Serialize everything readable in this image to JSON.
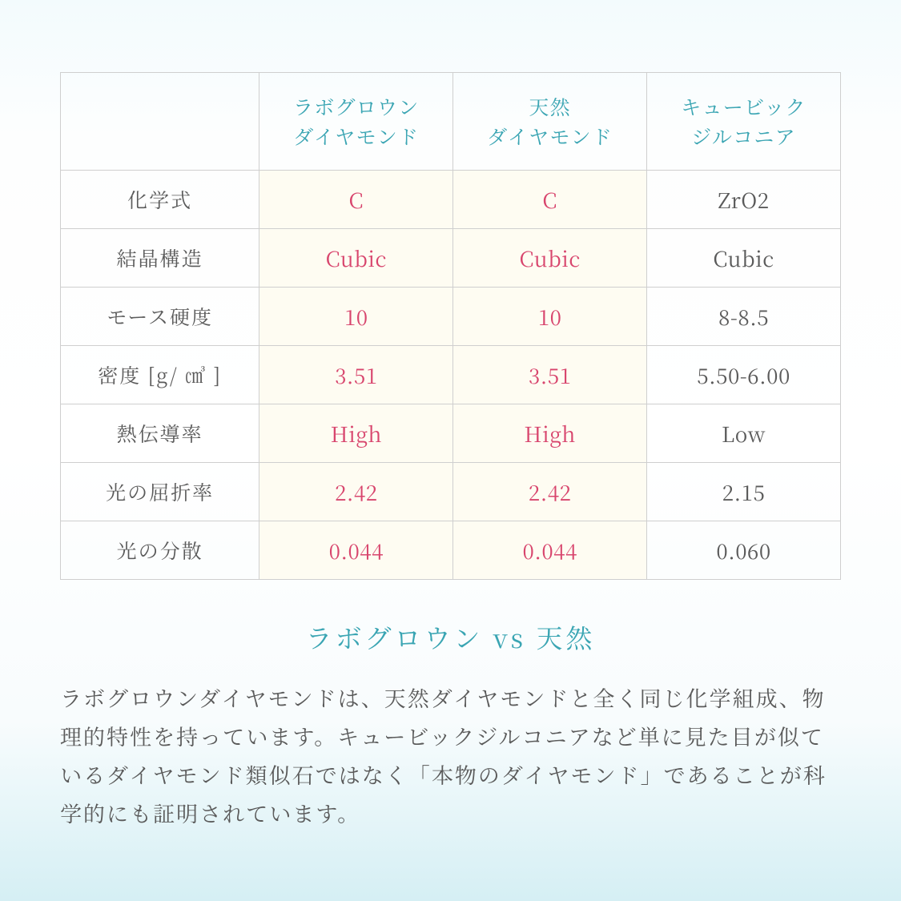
{
  "table": {
    "border_color": "#cfcfcf",
    "highlight_bg": "#fefcf2",
    "columns": [
      {
        "line1": "ラボグロウン",
        "line2": "ダイヤモンド",
        "text_color": "#3aa5b3"
      },
      {
        "line1": "天然",
        "line2": "ダイヤモンド",
        "text_color": "#3aa5b3"
      },
      {
        "line1": "キュービック",
        "line2": "ジルコニア",
        "text_color": "#3aa5b3"
      }
    ],
    "rows": [
      {
        "label": "化学式",
        "c1": "C",
        "c2": "C",
        "c3": "ZrO2"
      },
      {
        "label": "結晶構造",
        "c1": "Cubic",
        "c2": "Cubic",
        "c3": "Cubic"
      },
      {
        "label": "モース硬度",
        "c1": "10",
        "c2": "10",
        "c3": "8-8.5"
      },
      {
        "label": "密度 [g/ ㎤ ]",
        "c1": "3.51",
        "c2": "3.51",
        "c3": "5.50-6.00"
      },
      {
        "label": "熱伝導率",
        "c1": "High",
        "c2": "High",
        "c3": "Low"
      },
      {
        "label": "光の屈折率",
        "c1": "2.42",
        "c2": "2.42",
        "c3": "2.15"
      },
      {
        "label": "光の分散",
        "c1": "0.044",
        "c2": "0.044",
        "c3": "0.060"
      }
    ],
    "pink_color": "#d8456d",
    "gray_color": "#5a5a5a",
    "label_fontsize": 25,
    "cell_fontsize": 26,
    "header_fontsize": 25
  },
  "heading": {
    "text": "ラボグロウン vs 天然",
    "color": "#3aa5b3",
    "fontsize": 33
  },
  "body": {
    "text": "ラボグロウンダイヤモンドは、天然ダイヤモンドと全く同じ化学組成、物理的特性を持っています。キュービックジルコニアなど単に見た目が似ているダイヤモンド類似石ではなく「本物のダイヤモンド」であることが科学的にも証明されています。",
    "color": "#5a5a5a",
    "fontsize": 27
  },
  "background_gradient": [
    "#f3fbfd",
    "#ffffff",
    "#d5eff4"
  ]
}
